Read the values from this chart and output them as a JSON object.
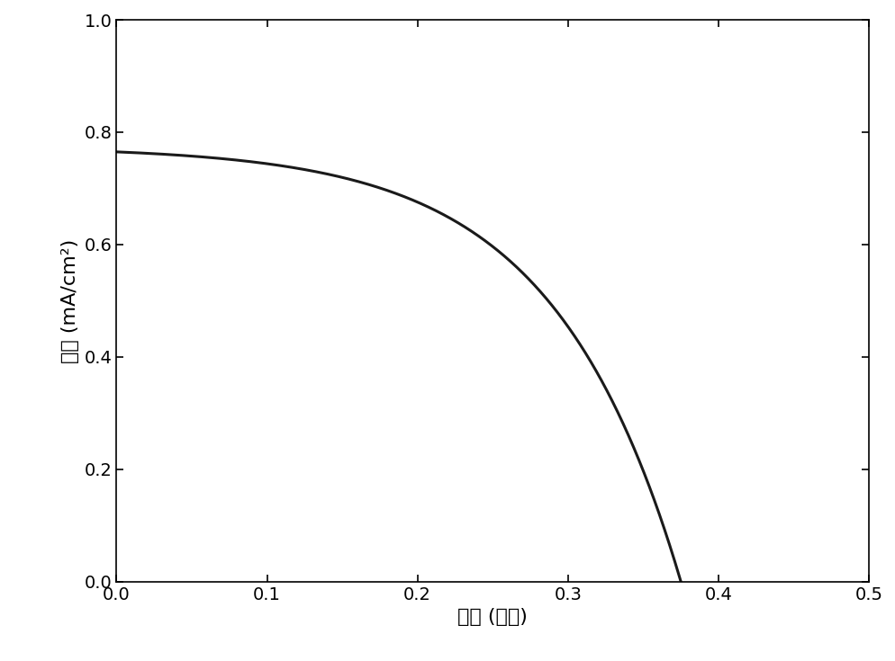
{
  "xlabel": "电压 (伏特)",
  "ylabel": "电流 (mA/cm²)",
  "xlim": [
    0.0,
    0.5
  ],
  "ylim": [
    0.0,
    1.0
  ],
  "xticks": [
    0.0,
    0.1,
    0.2,
    0.3,
    0.4,
    0.5
  ],
  "yticks": [
    0.0,
    0.2,
    0.4,
    0.6,
    0.8,
    1.0
  ],
  "line_color": "#1a1a1a",
  "line_width": 2.2,
  "Jsc": 0.765,
  "Voc": 0.375,
  "a": 0.085,
  "background_color": "#ffffff",
  "tick_labelsize": 14,
  "label_fontsize": 16
}
